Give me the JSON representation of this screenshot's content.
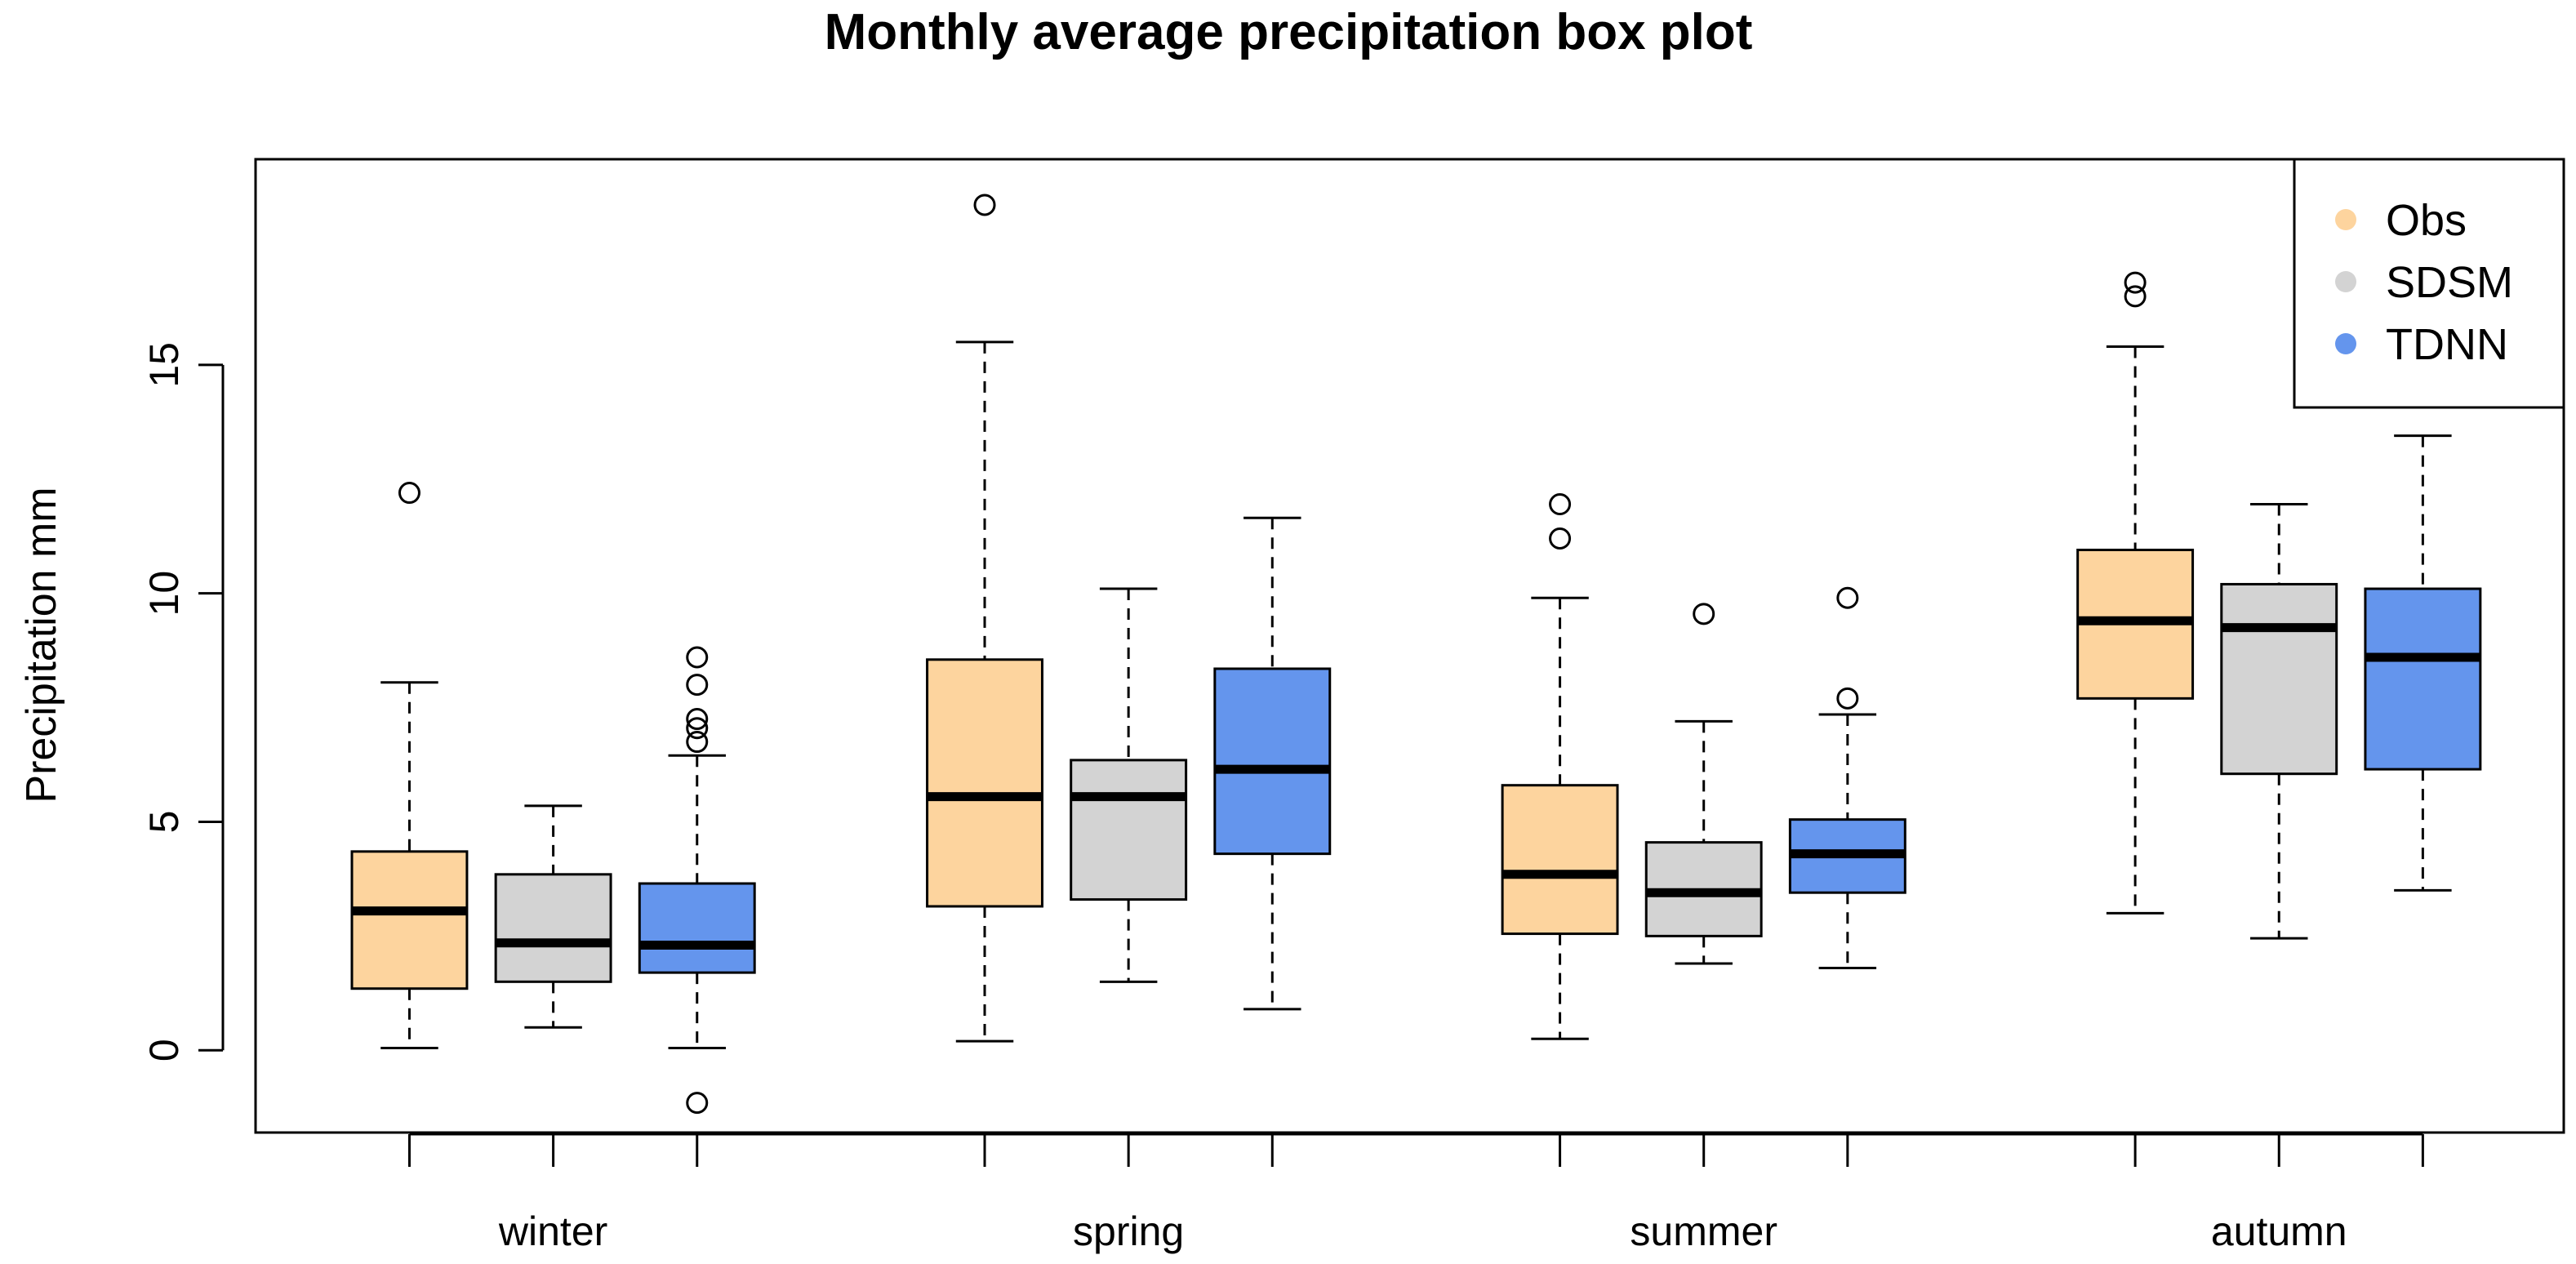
{
  "chart_data": {
    "type": "boxplot",
    "title": "Monthly average precipitation box plot",
    "xlabel": "",
    "ylabel": "Precipitation mm",
    "ylim": [
      -1.8,
      19.5
    ],
    "yticks": [
      0,
      5,
      10,
      15
    ],
    "categories": [
      "winter",
      "spring",
      "summer",
      "autumn"
    ],
    "legend_position": "top-right",
    "series": [
      {
        "name": "Obs",
        "color": "#FDD49E",
        "boxes": [
          {
            "min": 0.05,
            "q1": 1.35,
            "median": 3.05,
            "q3": 4.35,
            "max": 8.05,
            "outliers": [
              12.2
            ]
          },
          {
            "min": 0.2,
            "q1": 3.15,
            "median": 5.55,
            "q3": 8.55,
            "max": 15.5,
            "outliers": [
              18.5
            ]
          },
          {
            "min": 0.25,
            "q1": 2.55,
            "median": 3.85,
            "q3": 5.8,
            "max": 9.9,
            "outliers": [
              11.2,
              11.95
            ]
          },
          {
            "min": 3.0,
            "q1": 7.7,
            "median": 9.4,
            "q3": 10.95,
            "max": 15.4,
            "outliers": [
              16.5,
              16.8
            ]
          }
        ]
      },
      {
        "name": "SDSM",
        "color": "#D3D3D3",
        "boxes": [
          {
            "min": 0.5,
            "q1": 1.5,
            "median": 2.35,
            "q3": 3.85,
            "max": 5.35,
            "outliers": []
          },
          {
            "min": 1.5,
            "q1": 3.3,
            "median": 5.55,
            "q3": 6.35,
            "max": 10.1,
            "outliers": []
          },
          {
            "min": 1.9,
            "q1": 2.5,
            "median": 3.45,
            "q3": 4.55,
            "max": 7.2,
            "outliers": [
              9.55
            ]
          },
          {
            "min": 2.45,
            "q1": 6.05,
            "median": 9.25,
            "q3": 10.2,
            "max": 11.95,
            "outliers": []
          }
        ]
      },
      {
        "name": "TDNN",
        "color": "#6495ED",
        "boxes": [
          {
            "min": 0.05,
            "q1": 1.7,
            "median": 2.3,
            "q3": 3.65,
            "max": 6.45,
            "outliers": [
              -1.15,
              6.75,
              7.05,
              7.25,
              8.0,
              8.6
            ]
          },
          {
            "min": 0.9,
            "q1": 4.3,
            "median": 6.15,
            "q3": 8.35,
            "max": 11.65,
            "outliers": []
          },
          {
            "min": 1.8,
            "q1": 3.45,
            "median": 4.3,
            "q3": 5.05,
            "max": 7.35,
            "outliers": [
              7.7,
              9.9
            ]
          },
          {
            "min": 3.5,
            "q1": 6.15,
            "median": 8.6,
            "q3": 10.1,
            "max": 13.45,
            "outliers": []
          }
        ]
      }
    ]
  }
}
